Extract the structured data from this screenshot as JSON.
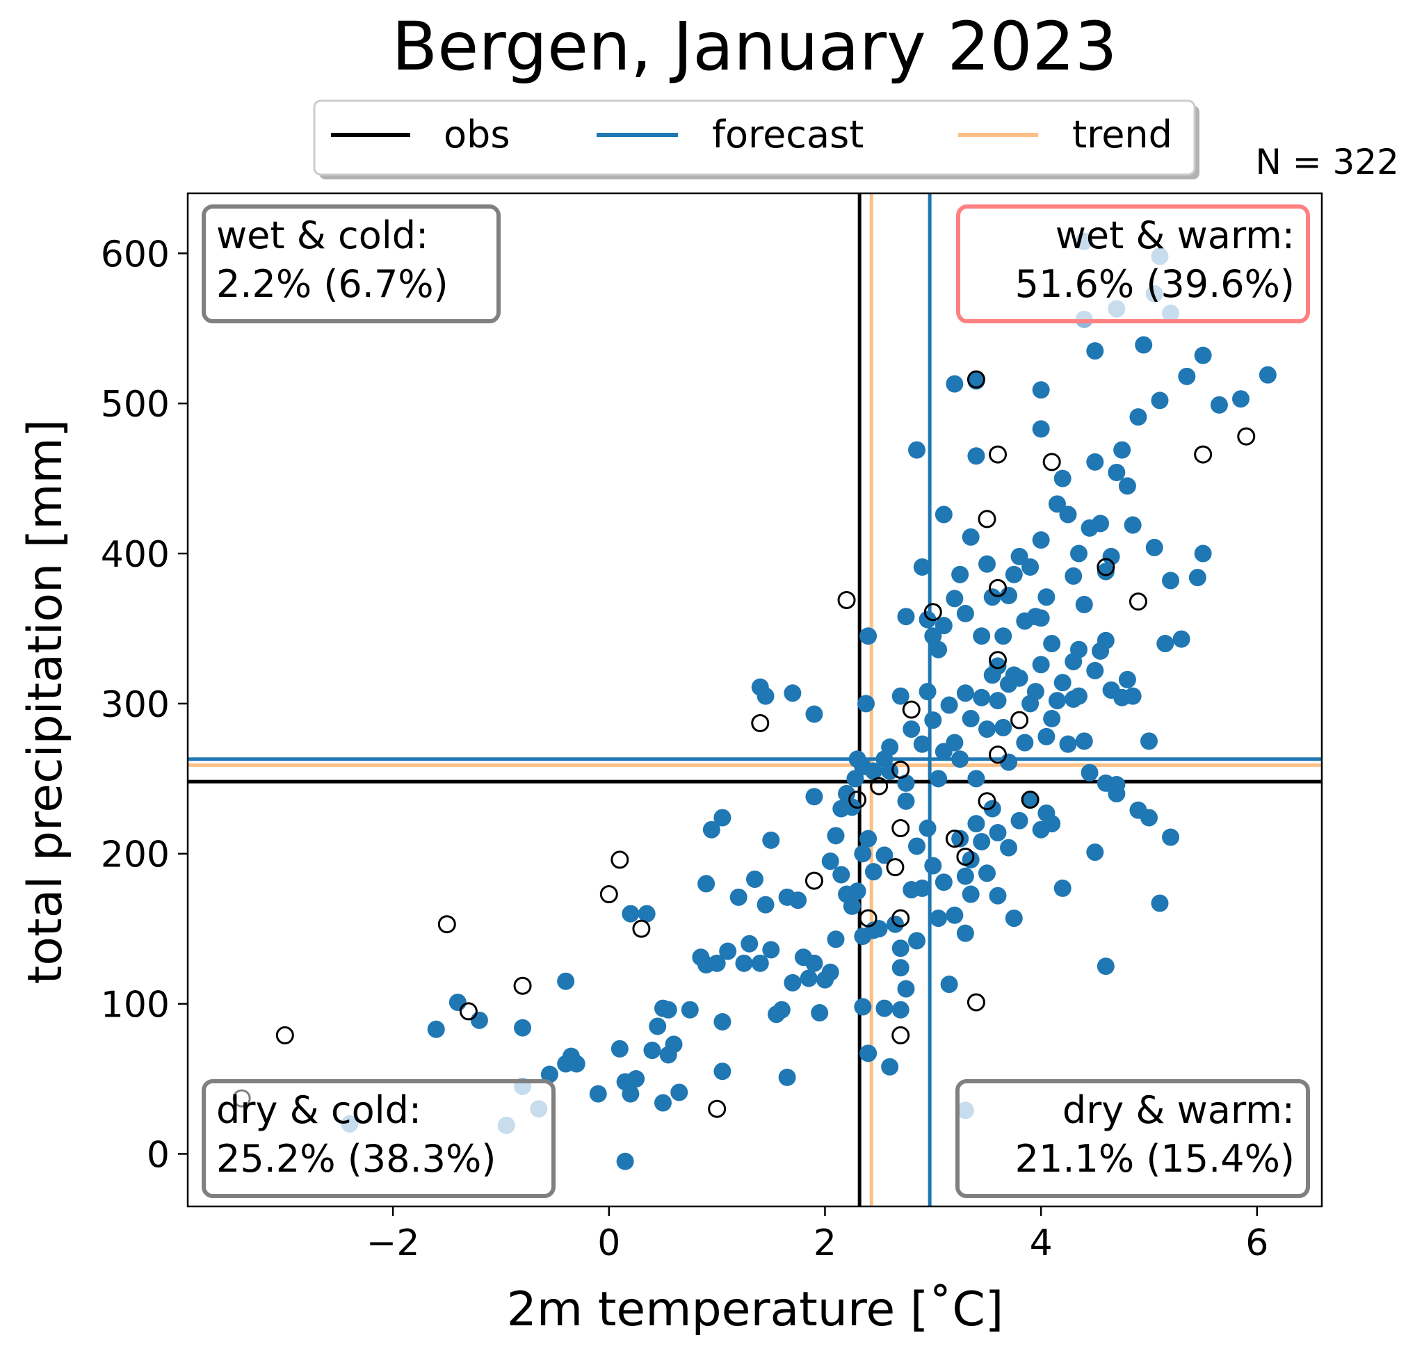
{
  "chart_data": {
    "type": "scatter",
    "title": "Bergen, January 2023",
    "xlabel": "2m temperature [˚C]",
    "ylabel": "total precipitation [mm]",
    "xlim": [
      -3.9,
      6.6
    ],
    "ylim": [
      -35,
      640
    ],
    "xticks": [
      -2,
      0,
      2,
      4,
      6
    ],
    "xtick_labels": [
      "−2",
      "0",
      "2",
      "4",
      "6"
    ],
    "yticks": [
      0,
      100,
      200,
      300,
      400,
      500,
      600
    ],
    "ytick_labels": [
      "0",
      "100",
      "200",
      "300",
      "400",
      "500",
      "600"
    ],
    "grid": false,
    "sample_count_label": "N = 322",
    "legend": {
      "placement": "top-center",
      "entries": [
        {
          "label": "obs",
          "color": "#000000"
        },
        {
          "label": "forecast",
          "color": "#1f77b4"
        },
        {
          "label": "trend",
          "color": "#fdbf85"
        }
      ]
    },
    "reference_lines": {
      "obs": {
        "x": 2.32,
        "y": 248,
        "color": "#000000"
      },
      "forecast": {
        "x": 2.97,
        "y": 263,
        "color": "#1f77b4"
      },
      "trend": {
        "x": 2.43,
        "y": 259,
        "color": "#fdbf85"
      }
    },
    "quadrants": [
      {
        "corner": "top-left",
        "line1": "wet & cold:",
        "line2": "2.2% (6.7%)",
        "border_color": "#808080"
      },
      {
        "corner": "top-right",
        "line1": "wet & warm:",
        "line2": "51.6% (39.6%)",
        "border_color": "#ff8080"
      },
      {
        "corner": "bottom-left",
        "line1": "dry & cold:",
        "line2": "25.2% (38.3%)",
        "border_color": "#808080"
      },
      {
        "corner": "bottom-right",
        "line1": "dry & warm:",
        "line2": "21.1% (15.4%)",
        "border_color": "#808080"
      }
    ],
    "series": [
      {
        "name": "forecast",
        "marker": "filled-circle",
        "color": "#1f77b4",
        "points": [
          [
            -1.6,
            83
          ],
          [
            -1.4,
            101
          ],
          [
            -1.2,
            89
          ],
          [
            -0.8,
            84
          ],
          [
            -0.4,
            115
          ],
          [
            -0.35,
            65
          ],
          [
            -0.3,
            60
          ],
          [
            -0.55,
            53
          ],
          [
            -0.1,
            40
          ],
          [
            0.1,
            70
          ],
          [
            0.15,
            48
          ],
          [
            0.2,
            40
          ],
          [
            0.25,
            50
          ],
          [
            0.2,
            160
          ],
          [
            0.35,
            160
          ],
          [
            0.4,
            69
          ],
          [
            0.45,
            85
          ],
          [
            0.5,
            97
          ],
          [
            0.55,
            96
          ],
          [
            0.5,
            34
          ],
          [
            0.55,
            66
          ],
          [
            0.6,
            73
          ],
          [
            0.65,
            41
          ],
          [
            0.75,
            96
          ],
          [
            0.85,
            131
          ],
          [
            0.9,
            126
          ],
          [
            0.9,
            180
          ],
          [
            0.95,
            216
          ],
          [
            1.0,
            127
          ],
          [
            1.05,
            88
          ],
          [
            1.05,
            55
          ],
          [
            1.1,
            135
          ],
          [
            1.05,
            224
          ],
          [
            1.2,
            171
          ],
          [
            1.25,
            127
          ],
          [
            1.3,
            140
          ],
          [
            1.35,
            183
          ],
          [
            1.4,
            127
          ],
          [
            1.45,
            166
          ],
          [
            1.5,
            136
          ],
          [
            1.5,
            209
          ],
          [
            1.55,
            93
          ],
          [
            1.6,
            96
          ],
          [
            1.65,
            171
          ],
          [
            1.65,
            51
          ],
          [
            1.7,
            114
          ],
          [
            1.75,
            169
          ],
          [
            1.8,
            131
          ],
          [
            1.85,
            117
          ],
          [
            1.9,
            127
          ],
          [
            1.95,
            94
          ],
          [
            2.0,
            116
          ],
          [
            2.05,
            121
          ],
          [
            2.1,
            143
          ],
          [
            2.15,
            186
          ],
          [
            2.2,
            173
          ],
          [
            2.25,
            165
          ],
          [
            2.25,
            231
          ],
          [
            2.35,
            200
          ],
          [
            2.4,
            210
          ],
          [
            2.35,
            98
          ],
          [
            2.45,
            149
          ],
          [
            2.4,
            67
          ],
          [
            2.3,
            175
          ],
          [
            2.35,
            145
          ],
          [
            2.45,
            188
          ],
          [
            2.5,
            150
          ],
          [
            2.55,
            199
          ],
          [
            2.55,
            97
          ],
          [
            2.6,
            58
          ],
          [
            2.65,
            153
          ],
          [
            2.7,
            137
          ],
          [
            2.7,
            96
          ],
          [
            2.7,
            124
          ],
          [
            2.75,
            110
          ],
          [
            2.8,
            176
          ],
          [
            2.85,
            205
          ],
          [
            2.85,
            142
          ],
          [
            2.9,
            177
          ],
          [
            2.95,
            217
          ],
          [
            3.0,
            192
          ],
          [
            3.05,
            157
          ],
          [
            3.1,
            181
          ],
          [
            3.15,
            113
          ],
          [
            3.2,
            159
          ],
          [
            3.25,
            210
          ],
          [
            3.3,
            147
          ],
          [
            3.3,
            185
          ],
          [
            3.35,
            173
          ],
          [
            3.4,
            220
          ],
          [
            3.45,
            208
          ],
          [
            3.5,
            187
          ],
          [
            3.55,
            230
          ],
          [
            3.6,
            172
          ],
          [
            3.6,
            214
          ],
          [
            3.7,
            204
          ],
          [
            3.75,
            157
          ],
          [
            3.8,
            222
          ],
          [
            3.9,
            236
          ],
          [
            4.0,
            216
          ],
          [
            4.05,
            227
          ],
          [
            4.1,
            220
          ],
          [
            4.2,
            177
          ],
          [
            4.3,
            303
          ],
          [
            4.5,
            201
          ],
          [
            4.6,
            125
          ],
          [
            4.7,
            246
          ],
          [
            4.9,
            229
          ],
          [
            5.0,
            224
          ],
          [
            5.1,
            167
          ],
          [
            5.2,
            211
          ],
          [
            -0.4,
            60
          ],
          [
            2.4,
            345
          ],
          [
            2.38,
            300
          ],
          [
            2.6,
            271
          ],
          [
            2.7,
            305
          ],
          [
            2.75,
            247
          ],
          [
            2.8,
            283
          ],
          [
            2.9,
            273
          ],
          [
            2.95,
            308
          ],
          [
            3.0,
            289
          ],
          [
            3.05,
            250
          ],
          [
            3.1,
            268
          ],
          [
            3.15,
            299
          ],
          [
            3.2,
            274
          ],
          [
            3.25,
            263
          ],
          [
            3.3,
            307
          ],
          [
            3.35,
            290
          ],
          [
            3.4,
            250
          ],
          [
            3.45,
            304
          ],
          [
            3.5,
            283
          ],
          [
            3.55,
            319
          ],
          [
            3.6,
            302
          ],
          [
            3.65,
            284
          ],
          [
            3.7,
            313
          ],
          [
            3.75,
            319
          ],
          [
            3.8,
            317
          ],
          [
            3.85,
            274
          ],
          [
            3.9,
            300
          ],
          [
            3.95,
            308
          ],
          [
            4.0,
            326
          ],
          [
            4.05,
            278
          ],
          [
            4.1,
            290
          ],
          [
            4.15,
            302
          ],
          [
            4.2,
            314
          ],
          [
            4.25,
            273
          ],
          [
            4.3,
            328
          ],
          [
            4.35,
            305
          ],
          [
            4.4,
            275
          ],
          [
            4.45,
            254
          ],
          [
            4.5,
            322
          ],
          [
            4.55,
            335
          ],
          [
            4.6,
            247
          ],
          [
            4.65,
            309
          ],
          [
            4.7,
            240
          ],
          [
            4.75,
            304
          ],
          [
            4.8,
            316
          ],
          [
            4.85,
            305
          ],
          [
            5.0,
            275
          ],
          [
            5.15,
            340
          ],
          [
            5.3,
            343
          ],
          [
            2.85,
            469
          ],
          [
            2.9,
            391
          ],
          [
            3.0,
            345
          ],
          [
            3.1,
            426
          ],
          [
            3.2,
            513
          ],
          [
            3.25,
            386
          ],
          [
            3.3,
            360
          ],
          [
            3.35,
            411
          ],
          [
            3.4,
            465
          ],
          [
            3.45,
            345
          ],
          [
            3.5,
            393
          ],
          [
            3.55,
            371
          ],
          [
            3.6,
            325
          ],
          [
            3.65,
            345
          ],
          [
            3.7,
            372
          ],
          [
            3.75,
            386
          ],
          [
            3.8,
            398
          ],
          [
            3.85,
            355
          ],
          [
            3.9,
            391
          ],
          [
            3.95,
            358
          ],
          [
            4.0,
            409
          ],
          [
            4.05,
            371
          ],
          [
            4.1,
            340
          ],
          [
            4.15,
            433
          ],
          [
            4.2,
            450
          ],
          [
            4.25,
            426
          ],
          [
            4.3,
            385
          ],
          [
            4.35,
            400
          ],
          [
            4.4,
            366
          ],
          [
            4.45,
            417
          ],
          [
            4.5,
            461
          ],
          [
            4.55,
            420
          ],
          [
            4.6,
            388
          ],
          [
            4.65,
            398
          ],
          [
            4.7,
            454
          ],
          [
            4.75,
            469
          ],
          [
            4.8,
            445
          ],
          [
            4.85,
            419
          ],
          [
            4.9,
            491
          ],
          [
            4.95,
            539
          ],
          [
            5.05,
            404
          ],
          [
            5.1,
            502
          ],
          [
            5.2,
            382
          ],
          [
            5.35,
            518
          ],
          [
            5.45,
            384
          ],
          [
            5.5,
            400
          ],
          [
            5.5,
            532
          ],
          [
            5.65,
            499
          ],
          [
            5.85,
            503
          ],
          [
            6.1,
            519
          ],
          [
            4.5,
            535
          ],
          [
            4.0,
            509
          ],
          [
            4.0,
            483
          ],
          [
            3.4,
            515
          ],
          [
            2.75,
            358
          ],
          [
            2.95,
            356
          ],
          [
            3.1,
            352
          ],
          [
            3.05,
            336
          ],
          [
            3.2,
            370
          ],
          [
            2.3,
            263
          ],
          [
            2.35,
            258
          ],
          [
            2.28,
            250
          ],
          [
            2.2,
            240
          ],
          [
            2.15,
            230
          ],
          [
            2.1,
            212
          ],
          [
            2.05,
            195
          ],
          [
            1.9,
            238
          ],
          [
            1.4,
            311
          ],
          [
            1.45,
            305
          ],
          [
            1.7,
            307
          ],
          [
            1.9,
            293
          ],
          [
            2.55,
            263
          ],
          [
            2.6,
            255
          ],
          [
            2.45,
            255
          ],
          [
            2.75,
            235
          ],
          [
            3.35,
            196
          ],
          [
            3.7,
            261
          ],
          [
            4.0,
            357
          ],
          [
            4.35,
            336
          ],
          [
            4.6,
            342
          ],
          [
            0.15,
            -5
          ]
        ]
      },
      {
        "name": "forecast (faded)",
        "marker": "filled-circle",
        "color": "#8fb9db",
        "points": [
          [
            4.4,
            608
          ],
          [
            5.1,
            598
          ],
          [
            5.05,
            573
          ],
          [
            4.4,
            556
          ],
          [
            4.7,
            563
          ],
          [
            5.2,
            560
          ],
          [
            -0.8,
            45
          ],
          [
            -0.65,
            30
          ],
          [
            -0.95,
            19
          ],
          [
            -2.4,
            20
          ],
          [
            3.3,
            29
          ]
        ]
      },
      {
        "name": "obs",
        "marker": "hollow-circle",
        "color": "#000000",
        "points": [
          [
            -3.0,
            79
          ],
          [
            -3.4,
            37
          ],
          [
            -1.5,
            153
          ],
          [
            -1.3,
            95
          ],
          [
            -0.8,
            112
          ],
          [
            0.0,
            173
          ],
          [
            0.1,
            196
          ],
          [
            0.3,
            150
          ],
          [
            1.0,
            30
          ],
          [
            1.4,
            287
          ],
          [
            1.9,
            182
          ],
          [
            2.2,
            369
          ],
          [
            2.3,
            236
          ],
          [
            2.4,
            157
          ],
          [
            2.5,
            245
          ],
          [
            2.65,
            191
          ],
          [
            2.7,
            157
          ],
          [
            2.7,
            79
          ],
          [
            2.7,
            256
          ],
          [
            2.7,
            217
          ],
          [
            2.8,
            296
          ],
          [
            3.0,
            361
          ],
          [
            3.2,
            210
          ],
          [
            3.3,
            198
          ],
          [
            3.4,
            516
          ],
          [
            3.4,
            101
          ],
          [
            3.5,
            423
          ],
          [
            3.5,
            235
          ],
          [
            3.6,
            466
          ],
          [
            3.6,
            377
          ],
          [
            3.6,
            329
          ],
          [
            3.6,
            266
          ],
          [
            3.8,
            289
          ],
          [
            3.9,
            236
          ],
          [
            4.1,
            461
          ],
          [
            4.6,
            391
          ],
          [
            4.9,
            368
          ],
          [
            5.5,
            466
          ],
          [
            5.9,
            478
          ]
        ]
      }
    ]
  }
}
